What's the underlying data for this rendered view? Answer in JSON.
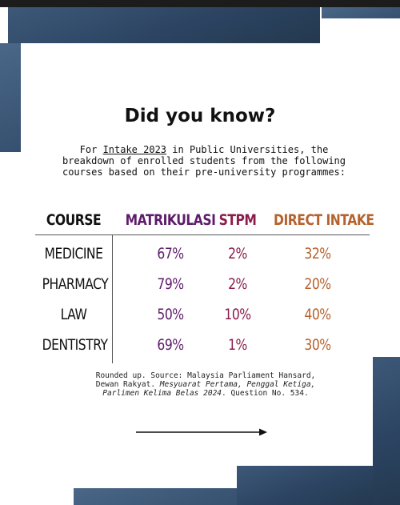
{
  "heading": "Did you know?",
  "intro": {
    "prefix": "For ",
    "highlight": "Intake 2023",
    "suffix": " in Public Universities, the breakdown of enrolled students from the following courses based on their pre-university programmes:"
  },
  "table": {
    "headers": [
      "COURSE",
      "MATRIKULASI",
      "STPM",
      "DIRECT INTAKE"
    ],
    "rows": [
      {
        "course": "MEDICINE",
        "matrikulasi": "67%",
        "stpm": "2%",
        "direct": "32%"
      },
      {
        "course": "PHARMACY",
        "matrikulasi": "79%",
        "stpm": "2%",
        "direct": "20%"
      },
      {
        "course": "LAW",
        "matrikulasi": "50%",
        "stpm": "10%",
        "direct": "40%"
      },
      {
        "course": "DENTISTRY",
        "matrikulasi": "69%",
        "stpm": "1%",
        "direct": "30%"
      }
    ]
  },
  "source": {
    "plain": "Rounded up. Source: Malaysia Parliament Hansard, Dewan Rakyat. ",
    "italic": "Mesyuarat Pertama, Penggal Ketiga, Parlimen Kelima Belas 2024",
    "end": ". Question No. 534."
  },
  "colors": {
    "navy": "#2c4462",
    "matrikulasi": "#5e1c6b",
    "stpm": "#8b1d4c",
    "direct": "#b5622e"
  },
  "icons": {
    "next": "arrow-right-icon"
  }
}
